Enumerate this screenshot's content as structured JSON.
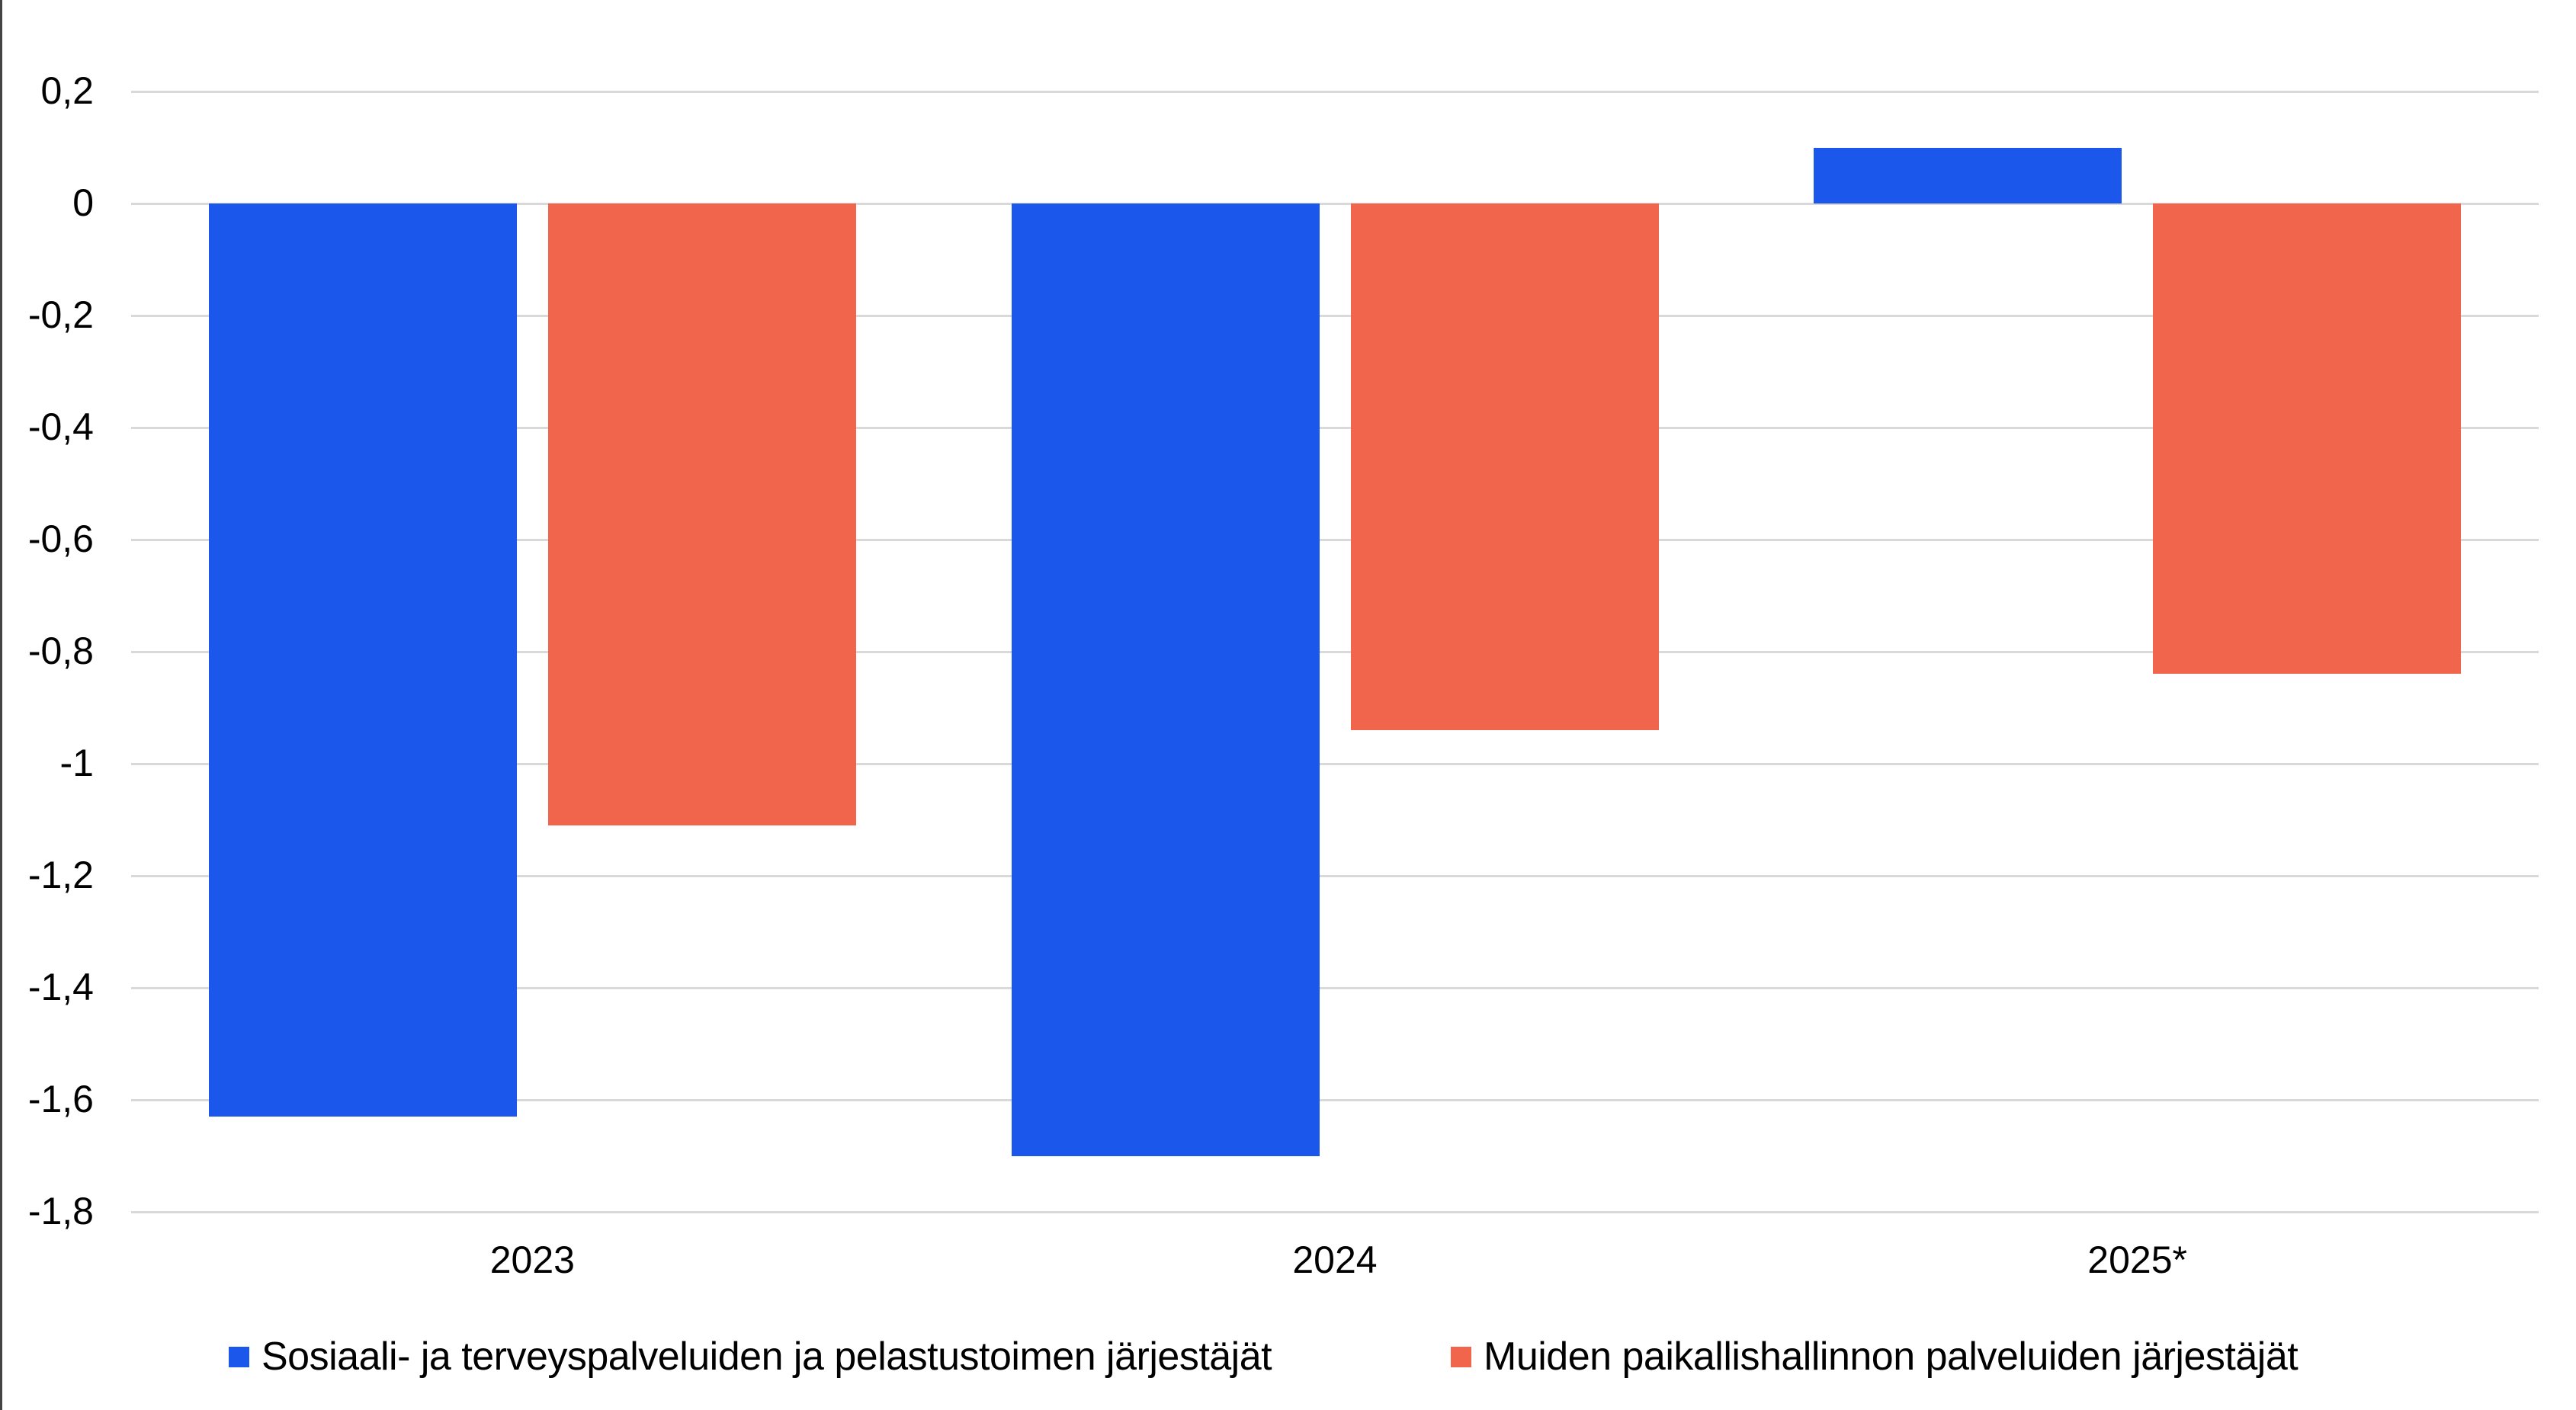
{
  "chart_data": {
    "type": "bar",
    "title": "",
    "xlabel": "",
    "ylabel": "",
    "categories": [
      "2023",
      "2024",
      "2025*"
    ],
    "series": [
      {
        "name": "Sosiaali- ja terveyspalveluiden ja pelastustoimen järjestäjät",
        "color": "#1c57ec",
        "values": [
          -1.63,
          -1.7,
          0.1
        ]
      },
      {
        "name": "Muiden paikallishallinnon palveluiden järjestäjät",
        "color": "#f2654d",
        "values": [
          -1.11,
          -0.94,
          -0.84
        ]
      }
    ],
    "ylim": [
      -1.8,
      0.2
    ],
    "yticks": [
      0.2,
      0,
      -0.2,
      -0.4,
      -0.6,
      -0.8,
      -1,
      -1.2,
      -1.4,
      -1.6,
      -1.8
    ],
    "ytick_labels": [
      "0,2",
      "0",
      "-0,2",
      "-0,4",
      "-0,6",
      "-0,8",
      "-1",
      "-1,2",
      "-1,4",
      "-1,6",
      "-1,8"
    ],
    "grid": true,
    "legend_position": "bottom"
  },
  "legend": {
    "items": [
      {
        "label": "Sosiaali- ja terveyspalveluiden ja pelastustoimen järjestäjät",
        "color": "#1c57ec"
      },
      {
        "label": "Muiden paikallishallinnon palveluiden järjestäjät",
        "color": "#f2654d"
      }
    ]
  },
  "colors": {
    "gridline": "#d9d9d9",
    "series_1": "#1c57ec",
    "series_2": "#f2654d"
  }
}
